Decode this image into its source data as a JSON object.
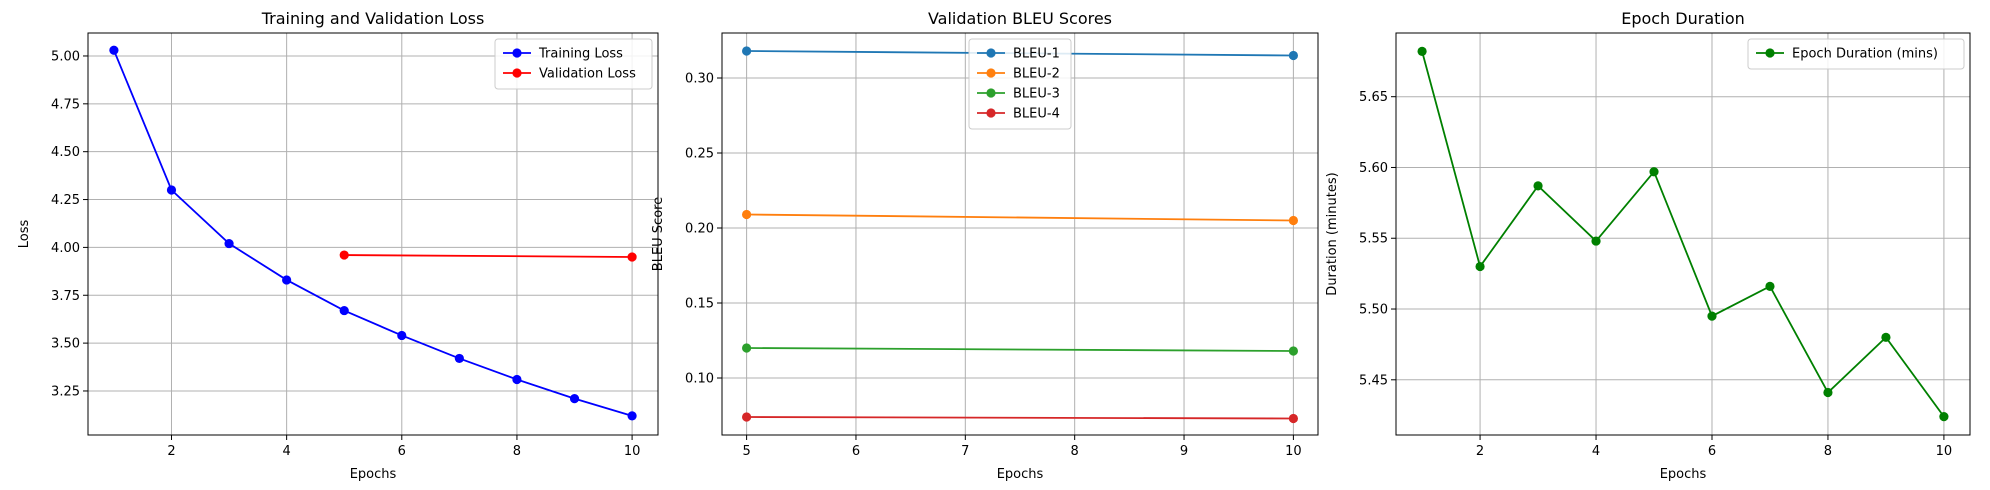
{
  "chart_data": [
    {
      "type": "line",
      "title": "Training and Validation Loss",
      "xlabel": "Epochs",
      "ylabel": "Loss",
      "xlim": [
        0.55,
        10.45
      ],
      "ylim": [
        3.02,
        5.12
      ],
      "xticks": [
        2,
        4,
        6,
        8,
        10
      ],
      "yticks": [
        3.25,
        3.5,
        3.75,
        4.0,
        4.25,
        4.5,
        4.75,
        5.0
      ],
      "xtick_labels": [
        "2",
        "4",
        "6",
        "8",
        "10"
      ],
      "ytick_labels": [
        "3.25",
        "3.50",
        "3.75",
        "4.00",
        "4.25",
        "4.50",
        "4.75",
        "5.00"
      ],
      "grid": true,
      "legend": "upper right",
      "series": [
        {
          "name": "Training Loss",
          "color": "#0000ff",
          "x": [
            1,
            2,
            3,
            4,
            5,
            6,
            7,
            8,
            9,
            10
          ],
          "y": [
            5.03,
            4.3,
            4.02,
            3.83,
            3.67,
            3.54,
            3.42,
            3.31,
            3.21,
            3.12
          ]
        },
        {
          "name": "Validation Loss",
          "color": "#ff0000",
          "x": [
            5,
            10
          ],
          "y": [
            3.96,
            3.95
          ]
        }
      ]
    },
    {
      "type": "line",
      "title": "Validation BLEU Scores",
      "xlabel": "Epochs",
      "ylabel": "BLEU Score",
      "xlim": [
        4.775,
        10.225
      ],
      "ylim": [
        0.062,
        0.33
      ],
      "xticks": [
        5,
        6,
        7,
        8,
        9,
        10
      ],
      "yticks": [
        0.1,
        0.15,
        0.2,
        0.25,
        0.3
      ],
      "xtick_labels": [
        "5",
        "6",
        "7",
        "8",
        "9",
        "10"
      ],
      "ytick_labels": [
        "0.10",
        "0.15",
        "0.20",
        "0.25",
        "0.30"
      ],
      "grid": true,
      "legend": "upper center",
      "series": [
        {
          "name": "BLEU-1",
          "color": "#1f77b4",
          "x": [
            5,
            10
          ],
          "y": [
            0.318,
            0.315
          ]
        },
        {
          "name": "BLEU-2",
          "color": "#ff7f0e",
          "x": [
            5,
            10
          ],
          "y": [
            0.209,
            0.205
          ]
        },
        {
          "name": "BLEU-3",
          "color": "#2ca02c",
          "x": [
            5,
            10
          ],
          "y": [
            0.12,
            0.118
          ]
        },
        {
          "name": "BLEU-4",
          "color": "#d62728",
          "x": [
            5,
            10
          ],
          "y": [
            0.074,
            0.073
          ]
        }
      ]
    },
    {
      "type": "line",
      "title": "Epoch Duration",
      "xlabel": "Epochs",
      "ylabel": "Duration (minutes)",
      "xlim": [
        0.55,
        10.45
      ],
      "ylim": [
        5.411,
        5.695
      ],
      "xticks": [
        2,
        4,
        6,
        8,
        10
      ],
      "yticks": [
        5.45,
        5.5,
        5.55,
        5.6,
        5.65
      ],
      "xtick_labels": [
        "2",
        "4",
        "6",
        "8",
        "10"
      ],
      "ytick_labels": [
        "5.45",
        "5.50",
        "5.55",
        "5.60",
        "5.65"
      ],
      "grid": true,
      "legend": "upper right",
      "series": [
        {
          "name": "Epoch Duration (mins)",
          "color": "#008000",
          "x": [
            1,
            2,
            3,
            4,
            5,
            6,
            7,
            8,
            9,
            10
          ],
          "y": [
            5.682,
            5.53,
            5.587,
            5.548,
            5.597,
            5.495,
            5.516,
            5.441,
            5.48,
            5.424
          ]
        }
      ]
    }
  ]
}
